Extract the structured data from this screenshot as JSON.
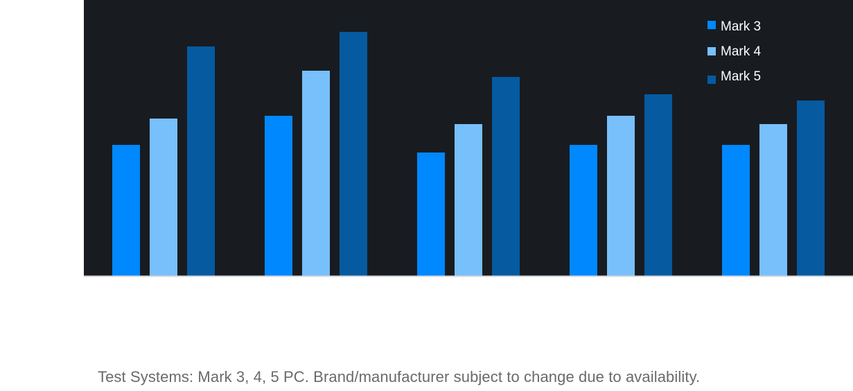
{
  "chart_data": {
    "type": "bar",
    "title": "",
    "xlabel": "",
    "ylabel": "",
    "categories": [
      "",
      "",
      "",
      "",
      ""
    ],
    "series": [
      {
        "name": "Mark 3",
        "color": "#0088ff",
        "values": [
          189,
          231,
          178,
          189,
          189
        ]
      },
      {
        "name": "Mark 4",
        "color": "#78c0fc",
        "values": [
          227,
          296,
          219,
          231,
          219
        ]
      },
      {
        "name": "Mark 5",
        "color": "#065aa0",
        "values": [
          331,
          352,
          287,
          262,
          253
        ]
      }
    ],
    "ylim": [
      0,
      398
    ],
    "grid": false,
    "legend_position": "top-right",
    "background": "#181c21",
    "baseline_color": "#d8d8d8"
  },
  "footnote": "Test Systems: Mark 3, 4, 5 PC. Brand/manufacturer subject to change due to availability."
}
